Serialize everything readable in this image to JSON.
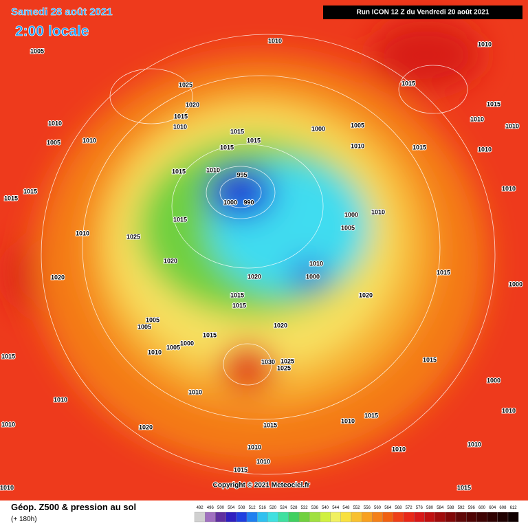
{
  "header": {
    "date": "Samedi 28 août 2021",
    "time": "2:00 locale",
    "run": "Run ICON 12 Z du Vendredi 20 août 2021"
  },
  "map": {
    "pressure_labels": [
      1005,
      1010,
      1010,
      1025,
      1020,
      1015,
      1010,
      1015,
      1015,
      1010,
      1010,
      1010,
      1005,
      1010,
      1000,
      1005,
      1010,
      1015,
      1015,
      1015,
      1015,
      1010,
      1015,
      1010,
      995,
      1000,
      990,
      1010,
      1000,
      1005,
      1015,
      1025,
      1010,
      1015,
      1015,
      1010,
      1020,
      1020,
      1010,
      1000,
      1020,
      1015,
      1015,
      1015,
      1000,
      1020,
      1005,
      1005,
      1010,
      1015,
      1000,
      1005,
      1020,
      1030,
      1025,
      1025,
      1010,
      1020,
      1015,
      1010,
      1015,
      1010,
      1015,
      1010,
      1015,
      1010,
      1010,
      1015,
      1010,
      1010,
      1010,
      1015,
      1000,
      1010
    ]
  },
  "copyright": "Copyright © 2021 Meteociel.fr",
  "legend": {
    "title": "Géop. Z500 & pression au sol",
    "subtitle": "(+ 180h)",
    "values": [
      492,
      496,
      500,
      504,
      508,
      512,
      516,
      520,
      524,
      528,
      532,
      536,
      540,
      544,
      548,
      552,
      556,
      560,
      564,
      568,
      572,
      576,
      580,
      584,
      588,
      592,
      596,
      600,
      604,
      608,
      612
    ]
  }
}
